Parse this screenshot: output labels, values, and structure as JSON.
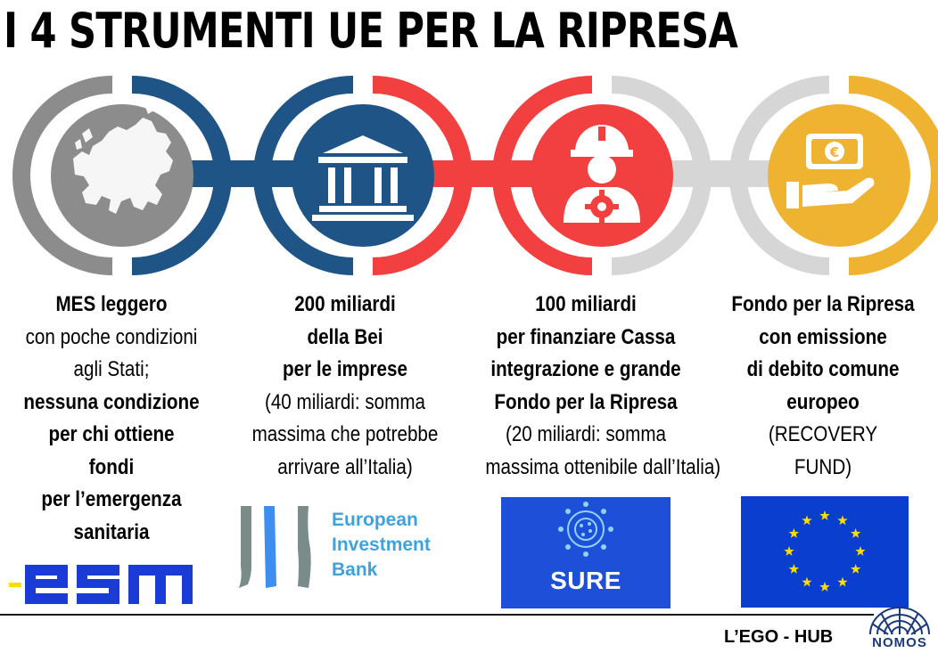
{
  "title": "I 4 STRUMENTI UE PER LA RIPRESA",
  "colors": {
    "gray": "#8c8c8c",
    "blue": "#1f5486",
    "red": "#f1403f",
    "light_gray": "#d6d6d6",
    "yellow": "#eeb431",
    "eib_blue": "#3ea3dc",
    "sure_blue": "#1d4fd9",
    "eu_blue": "#0a3ecf",
    "eu_star": "#ffdd00"
  },
  "tools": [
    {
      "icon": "europe-map-icon",
      "lines": [
        {
          "text": "MES leggero",
          "bold": true
        },
        {
          "text": "con poche condizioni",
          "bold": false
        },
        {
          "text": "agli Stati;",
          "bold": false
        },
        {
          "text": "nessuna condizione",
          "bold": true
        },
        {
          "text": "per chi ottiene",
          "bold": true
        },
        {
          "text": "fondi",
          "bold": true
        },
        {
          "text": "per l’emergenza",
          "bold": true
        },
        {
          "text": "sanitaria",
          "bold": true
        }
      ],
      "logo": "esm"
    },
    {
      "icon": "bank-building-icon",
      "lines": [
        {
          "text": "200 miliardi",
          "bold": true
        },
        {
          "text": "della Bei",
          "bold": true
        },
        {
          "text": "per le imprese",
          "bold": true
        },
        {
          "text": "(40 miliardi: somma",
          "bold": false
        },
        {
          "text": "massima che potrebbe",
          "bold": false
        },
        {
          "text": "arrivare all’Italia)",
          "bold": false
        }
      ],
      "logo": "European Investment Bank",
      "logo_lines": [
        "European",
        "Investment",
        "Bank"
      ]
    },
    {
      "icon": "worker-helmet-gear-icon",
      "lines": [
        {
          "text": "100 miliardi",
          "bold": true
        },
        {
          "text": "per finanziare Cassa",
          "bold": true
        },
        {
          "text": "integrazione e grande",
          "bold": true
        },
        {
          "text": "Fondo per la Ripresa",
          "bold": true
        },
        {
          "text": "(20 miliardi: somma",
          "bold": false
        },
        {
          "text": "massima ottenibile dall’Italia)",
          "bold": false
        }
      ],
      "logo": "SURE"
    },
    {
      "icon": "euro-banknote-hand-icon",
      "lines": [
        {
          "text": "Fondo per la Ripresa",
          "bold": true
        },
        {
          "text": "con emissione",
          "bold": true
        },
        {
          "text": "di debito comune",
          "bold": true
        },
        {
          "text": "europeo",
          "bold": true
        },
        {
          "text": "(RECOVERY",
          "bold": false
        },
        {
          "text": "FUND)",
          "bold": false
        }
      ],
      "logo": "eu-flag"
    }
  ],
  "footer": {
    "credit": "L’EGO - HUB",
    "brand": "NOMOS"
  }
}
